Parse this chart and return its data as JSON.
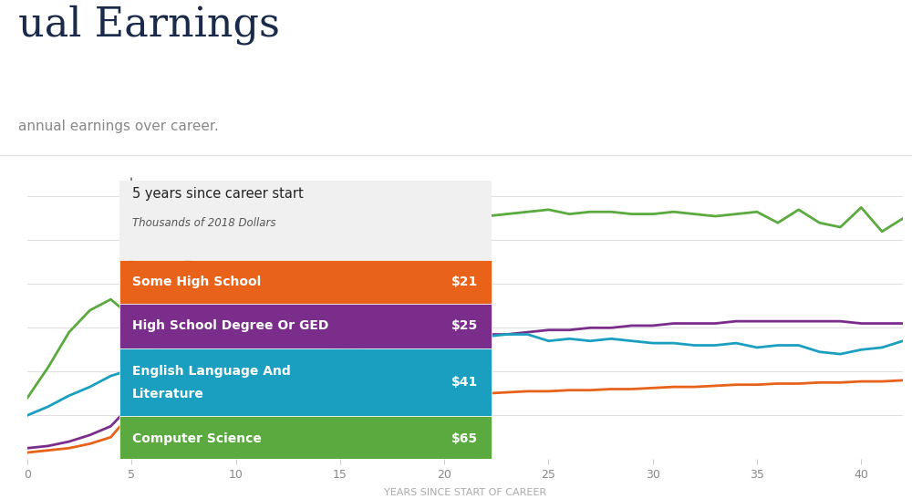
{
  "title": "ual Earnings",
  "subtitle": "annual earnings over career.",
  "xlabel": "YEARS SINCE START OF CAREER",
  "background_color": "#ffffff",
  "plot_bg_color": "#ffffff",
  "grid_color": "#e0e0e0",
  "dashed_line_x": 5,
  "tooltip_title": "5 years since career start",
  "tooltip_subtitle": "Thousands of 2018 Dollars",
  "legend_items": [
    {
      "label": "Some High School",
      "label2": "",
      "value": "$21",
      "color": "#e8621a"
    },
    {
      "label": "High School Degree Or GED",
      "label2": "",
      "value": "$25",
      "color": "#7b2d8b"
    },
    {
      "label": "English Language And",
      "label2": "Literature",
      "value": "$41",
      "color": "#1b9fc0"
    },
    {
      "label": "Computer Science",
      "label2": "",
      "value": "$65",
      "color": "#5aaa3f"
    }
  ],
  "series": {
    "some_hs": {
      "color": "#e8621a",
      "x": [
        0,
        1,
        2,
        3,
        4,
        5,
        6,
        7,
        8,
        9,
        10,
        11,
        12,
        13,
        14,
        15,
        16,
        17,
        18,
        19,
        20,
        21,
        22,
        23,
        24,
        25,
        26,
        27,
        28,
        29,
        30,
        31,
        32,
        33,
        34,
        35,
        36,
        37,
        38,
        39,
        40,
        41,
        42
      ],
      "y": [
        3,
        4,
        5,
        7,
        10,
        21,
        22,
        23,
        24,
        25,
        26,
        27,
        27.5,
        28,
        28.5,
        29,
        29,
        29.5,
        29.8,
        30,
        30,
        30.2,
        30,
        30.5,
        31,
        31,
        31.5,
        31.5,
        32,
        32,
        32.5,
        33,
        33,
        33.5,
        34,
        34,
        34.5,
        34.5,
        35,
        35,
        35.5,
        35.5,
        36
      ]
    },
    "hs_ged": {
      "color": "#7b2d8b",
      "x": [
        0,
        1,
        2,
        3,
        4,
        5,
        6,
        7,
        8,
        9,
        10,
        11,
        12,
        13,
        14,
        15,
        16,
        17,
        18,
        19,
        20,
        21,
        22,
        23,
        24,
        25,
        26,
        27,
        28,
        29,
        30,
        31,
        32,
        33,
        34,
        35,
        36,
        37,
        38,
        39,
        40,
        41,
        42
      ],
      "y": [
        5,
        6,
        8,
        11,
        15,
        25,
        28,
        32,
        35,
        38,
        42,
        44,
        46,
        47,
        49,
        50,
        51,
        52,
        53,
        54,
        55,
        56,
        57,
        57,
        58,
        59,
        59,
        60,
        60,
        61,
        61,
        62,
        62,
        62,
        63,
        63,
        63,
        63,
        63,
        63,
        62,
        62,
        62
      ]
    },
    "english": {
      "color": "#1b9fc0",
      "x": [
        0,
        1,
        2,
        3,
        4,
        5,
        6,
        7,
        8,
        9,
        10,
        11,
        12,
        13,
        14,
        15,
        16,
        17,
        18,
        19,
        20,
        21,
        22,
        23,
        24,
        25,
        26,
        27,
        28,
        29,
        30,
        31,
        32,
        33,
        34,
        35,
        36,
        37,
        38,
        39,
        40,
        41,
        42
      ],
      "y": [
        20,
        24,
        29,
        33,
        38,
        41,
        48,
        60,
        70,
        65,
        63,
        65,
        62,
        64,
        67,
        64,
        62,
        63,
        61,
        58,
        57,
        58,
        56,
        57,
        57,
        54,
        55,
        54,
        55,
        54,
        53,
        53,
        52,
        52,
        53,
        51,
        52,
        52,
        49,
        48,
        50,
        51,
        54
      ]
    },
    "cs": {
      "color": "#5aaa3f",
      "x": [
        0,
        1,
        2,
        3,
        4,
        5,
        6,
        7,
        8,
        9,
        10,
        11,
        12,
        13,
        14,
        15,
        16,
        17,
        18,
        19,
        20,
        21,
        22,
        23,
        24,
        25,
        26,
        27,
        28,
        29,
        30,
        31,
        32,
        33,
        34,
        35,
        36,
        37,
        38,
        39,
        40,
        41,
        42
      ],
      "y": [
        28,
        42,
        58,
        68,
        73,
        65,
        80,
        88,
        92,
        96,
        98,
        100,
        102,
        104,
        105,
        107,
        106,
        108,
        108,
        110,
        109,
        110,
        111,
        112,
        113,
        114,
        112,
        113,
        113,
        112,
        112,
        113,
        112,
        111,
        112,
        113,
        108,
        114,
        108,
        106,
        115,
        104,
        110
      ]
    }
  },
  "marker_x": 5,
  "xlim": [
    0,
    42
  ],
  "ylim": [
    0,
    130
  ],
  "xticks": [
    0,
    5,
    10,
    15,
    20,
    25,
    30,
    35,
    40
  ],
  "title_color": "#1a2a4a",
  "title_fontsize": 32,
  "subtitle_fontsize": 11,
  "subtitle_color": "#888888"
}
